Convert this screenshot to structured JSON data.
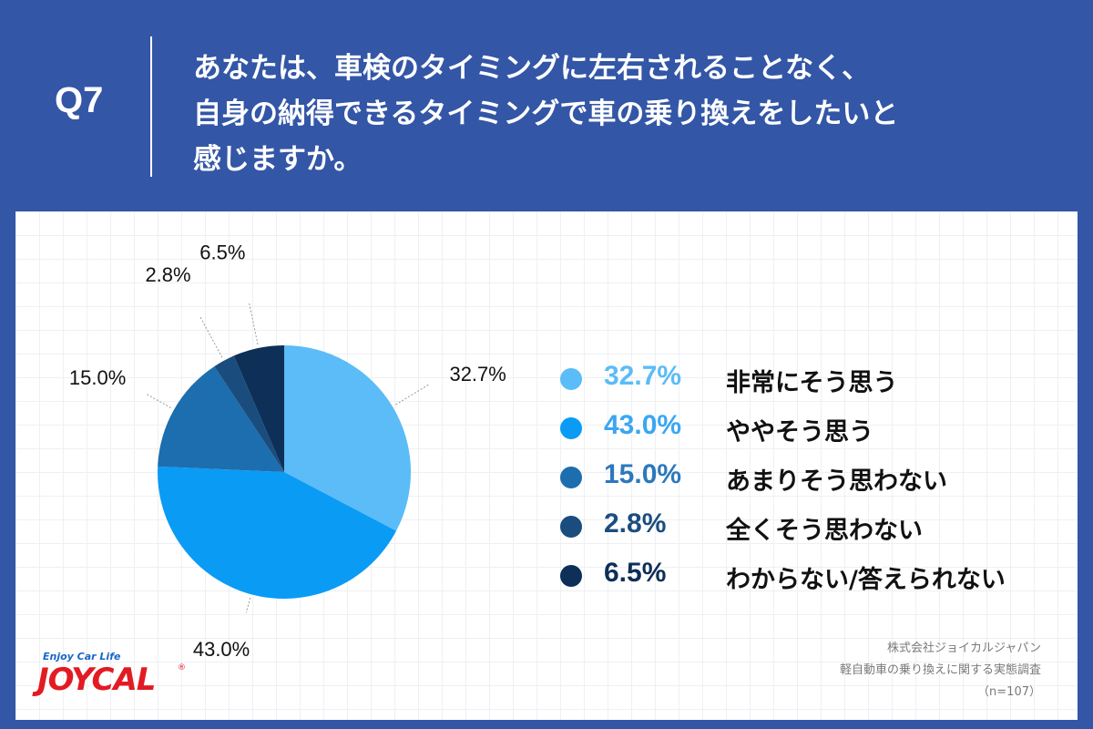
{
  "header": {
    "qnum": "Q7",
    "question_lines": [
      "あなたは、車検のタイミングに左右されることなく、",
      "自身の納得できるタイミングで車の乗り換えをしたいと",
      "感じますか。"
    ]
  },
  "chart_data": {
    "type": "pie",
    "categories": [
      "非常にそう思う",
      "ややそう思う",
      "あまりそう思わない",
      "全くそう思わない",
      "わからない/答えられない"
    ],
    "values": [
      32.7,
      43.0,
      15.0,
      2.8,
      6.5
    ],
    "data_labels": [
      "32.7%",
      "43.0%",
      "15.0%",
      "2.8%",
      "6.5%"
    ],
    "colors": [
      "#5bbcf7",
      "#0a9bf5",
      "#1c6eae",
      "#1a4c7e",
      "#0d2f58"
    ],
    "legend_pct_colors": [
      "#5bbcf7",
      "#3ba6f2",
      "#2c78bd",
      "#1b4d80",
      "#0d2f58"
    ],
    "legend_placement": "right"
  },
  "footer": {
    "company": "株式会社ジョイカルジャパン",
    "survey": "軽自動車の乗り換えに関する実態調査",
    "sample": "（n=107）"
  },
  "logo": {
    "tagline": "Enjoy Car Life",
    "wordmark": "JOYCAL",
    "reg": "®"
  }
}
